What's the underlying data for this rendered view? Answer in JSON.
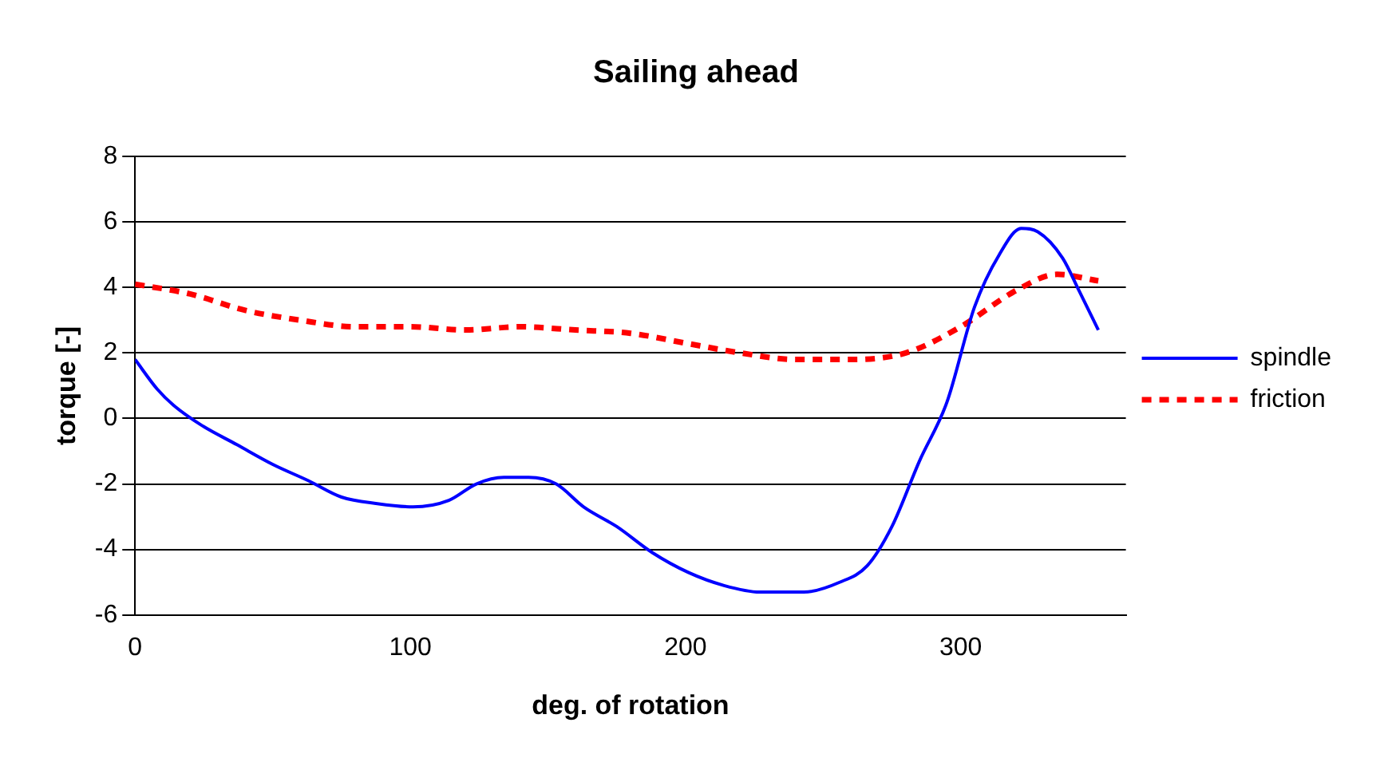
{
  "chart_data": {
    "type": "line",
    "title": "Sailing ahead",
    "xlabel": "deg. of rotation",
    "ylabel": "torque [-]",
    "xlim": [
      0,
      360
    ],
    "xticks": [
      0,
      100,
      200,
      300
    ],
    "ylim": [
      -6,
      8
    ],
    "yticks": [
      -6,
      -4,
      -2,
      0,
      2,
      4,
      6,
      8
    ],
    "grid": "y",
    "legend": "right",
    "marker": "none",
    "series": [
      {
        "name": "spindle",
        "color": "#0000ff",
        "line_style": "solid",
        "x": [
          0,
          8,
          14,
          24,
          37,
          50,
          63,
          75,
          88,
          101,
          114,
          124,
          134,
          143,
          153,
          163,
          175,
          188,
          201,
          214,
          227,
          243,
          256,
          266,
          275,
          285,
          295,
          305,
          314,
          322,
          328,
          337,
          343,
          350
        ],
        "values": [
          1.8,
          0.9,
          0.4,
          -0.2,
          -0.8,
          -1.4,
          -1.9,
          -2.4,
          -2.6,
          -2.7,
          -2.5,
          -2.0,
          -1.8,
          -1.8,
          -2.0,
          -2.7,
          -3.3,
          -4.1,
          -4.7,
          -5.1,
          -5.3,
          -5.3,
          -5.0,
          -4.5,
          -3.3,
          -1.3,
          0.5,
          3.4,
          5.0,
          5.8,
          5.7,
          4.9,
          3.9,
          2.7
        ]
      },
      {
        "name": "friction",
        "color": "#ff0000",
        "line_style": "dashed",
        "x": [
          0,
          20,
          40,
          60,
          80,
          100,
          120,
          140,
          160,
          180,
          200,
          220,
          240,
          260,
          280,
          300,
          320,
          335,
          350
        ],
        "values": [
          4.1,
          3.8,
          3.3,
          3.0,
          2.8,
          2.8,
          2.7,
          2.8,
          2.7,
          2.6,
          2.3,
          2.0,
          1.8,
          1.8,
          2.0,
          2.8,
          3.9,
          4.4,
          4.2
        ]
      }
    ]
  }
}
